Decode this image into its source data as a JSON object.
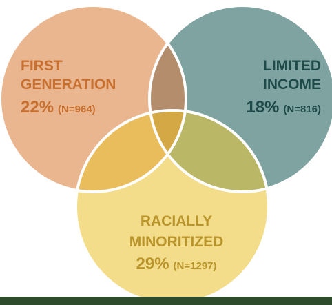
{
  "sets": [
    {
      "lines": [
        "FIRST",
        "GENERATION"
      ],
      "percent": "22%",
      "n": "(N=964)"
    },
    {
      "lines": [
        "LIMITED",
        "INCOME"
      ],
      "percent": "18%",
      "n": "(N=816)"
    },
    {
      "lines": [
        "RACIALLY",
        "MINORITIZED"
      ],
      "percent": "29%",
      "n": "(N=1297)"
    }
  ]
}
